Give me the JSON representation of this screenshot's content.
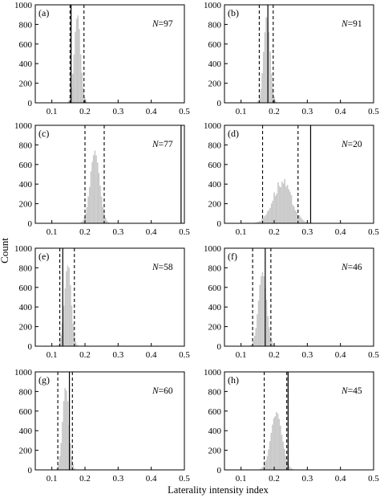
{
  "figure": {
    "xlabel": "Laterality intensity index",
    "ylabel": "Count"
  },
  "chart_data": [
    {
      "type": "histogram",
      "panel_label": "(a)",
      "n_label": "97",
      "xlim": [
        0.05,
        0.5
      ],
      "ylim": [
        0,
        1000
      ],
      "xticks": [
        "0.1",
        "0.2",
        "0.3",
        "0.4",
        "0.5"
      ],
      "yticks": [
        "0",
        "200",
        "400",
        "600",
        "800",
        "1000"
      ],
      "distribution": {
        "center": 0.175,
        "sd": 0.0095,
        "peak": 900,
        "shape": "bell"
      },
      "dashed_lines": [
        0.155,
        0.197
      ],
      "observed_line": 0.158
    },
    {
      "type": "histogram",
      "panel_label": "(b)",
      "n_label": "91",
      "xlim": [
        0.05,
        0.5
      ],
      "ylim": [
        0,
        1000
      ],
      "xticks": [
        "0.1",
        "0.2",
        "0.3",
        "0.4",
        "0.5"
      ],
      "yticks": [
        "0",
        "200",
        "400",
        "600",
        "800",
        "1000"
      ],
      "distribution": {
        "center": 0.176,
        "sd": 0.0095,
        "peak": 900,
        "shape": "bell"
      },
      "dashed_lines": [
        0.155,
        0.197
      ],
      "observed_line": 0.181
    },
    {
      "type": "histogram",
      "panel_label": "(c)",
      "n_label": "77",
      "xlim": [
        0.05,
        0.5
      ],
      "ylim": [
        0,
        1000
      ],
      "xticks": [
        "0.1",
        "0.2",
        "0.3",
        "0.4",
        "0.5"
      ],
      "yticks": [
        "0",
        "200",
        "400",
        "600",
        "800",
        "1000"
      ],
      "distribution": {
        "center": 0.228,
        "sd": 0.014,
        "peak": 750,
        "shape": "bell"
      },
      "dashed_lines": [
        0.2,
        0.258
      ],
      "observed_line": 0.49
    },
    {
      "type": "histogram",
      "panel_label": "(d)",
      "n_label": "20",
      "xlim": [
        0.05,
        0.5
      ],
      "ylim": [
        0,
        1000
      ],
      "xticks": [
        "0.1",
        "0.2",
        "0.3",
        "0.4",
        "0.5"
      ],
      "yticks": [
        "0",
        "200",
        "400",
        "600",
        "800",
        "1000"
      ],
      "distribution": {
        "center": 0.222,
        "sd": 0.028,
        "peak": 440,
        "shape": "jagged"
      },
      "dashed_lines": [
        0.165,
        0.272
      ],
      "observed_line": 0.31
    },
    {
      "type": "histogram",
      "panel_label": "(e)",
      "n_label": "58",
      "xlim": [
        0.05,
        0.5
      ],
      "ylim": [
        0,
        1000
      ],
      "xticks": [
        "0.1",
        "0.2",
        "0.3",
        "0.4",
        "0.5"
      ],
      "yticks": [
        "0",
        "200",
        "400",
        "600",
        "800",
        "1000"
      ],
      "distribution": {
        "center": 0.146,
        "sd": 0.01,
        "peak": 850,
        "shape": "bell"
      },
      "dashed_lines": [
        0.124,
        0.168
      ],
      "observed_line": 0.133
    },
    {
      "type": "histogram",
      "panel_label": "(f)",
      "n_label": "46",
      "xlim": [
        0.05,
        0.5
      ],
      "ylim": [
        0,
        1000
      ],
      "xticks": [
        "0.1",
        "0.2",
        "0.3",
        "0.4",
        "0.5"
      ],
      "yticks": [
        "0",
        "200",
        "400",
        "600",
        "800",
        "1000"
      ],
      "distribution": {
        "center": 0.163,
        "sd": 0.012,
        "peak": 770,
        "shape": "bell"
      },
      "dashed_lines": [
        0.135,
        0.19
      ],
      "observed_line": 0.173
    },
    {
      "type": "histogram",
      "panel_label": "(g)",
      "n_label": "60",
      "xlim": [
        0.05,
        0.5
      ],
      "ylim": [
        0,
        1000
      ],
      "xticks": [
        "0.1",
        "0.2",
        "0.3",
        "0.4",
        "0.5"
      ],
      "yticks": [
        "0",
        "200",
        "400",
        "600",
        "800",
        "1000"
      ],
      "distribution": {
        "center": 0.14,
        "sd": 0.0095,
        "peak": 840,
        "shape": "bell"
      },
      "dashed_lines": [
        0.118,
        0.162
      ],
      "observed_line": 0.153
    },
    {
      "type": "histogram",
      "panel_label": "(h)",
      "n_label": "45",
      "xlim": [
        0.05,
        0.5
      ],
      "ylim": [
        0,
        1000
      ],
      "xticks": [
        "0.1",
        "0.2",
        "0.3",
        "0.4",
        "0.5"
      ],
      "yticks": [
        "0",
        "200",
        "400",
        "600",
        "800",
        "1000"
      ],
      "distribution": {
        "center": 0.205,
        "sd": 0.017,
        "peak": 580,
        "shape": "bell"
      },
      "dashed_lines": [
        0.17,
        0.238
      ],
      "observed_line": 0.242
    }
  ]
}
